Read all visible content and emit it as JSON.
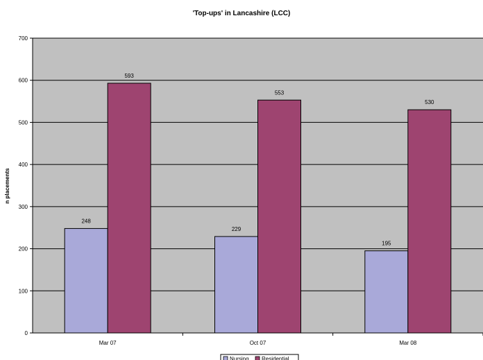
{
  "chart_data": {
    "type": "bar",
    "title": "'Top-ups' in Lancashire (LCC)",
    "ylabel": "n placements",
    "xlabel": "",
    "categories": [
      "Mar 07",
      "Oct 07",
      "Mar 08"
    ],
    "series": [
      {
        "name": "Nursing",
        "values": [
          248,
          229,
          195
        ],
        "color": "#a9a9d9"
      },
      {
        "name": "Residential",
        "values": [
          593,
          553,
          530
        ],
        "color": "#9e4470"
      }
    ],
    "ylim": [
      0,
      700
    ],
    "yticks": [
      0,
      100,
      200,
      300,
      400,
      500,
      600,
      700
    ],
    "grid": true,
    "legend_position": "bottom",
    "plot_background": "#c0c0c0",
    "data_labels": true
  }
}
